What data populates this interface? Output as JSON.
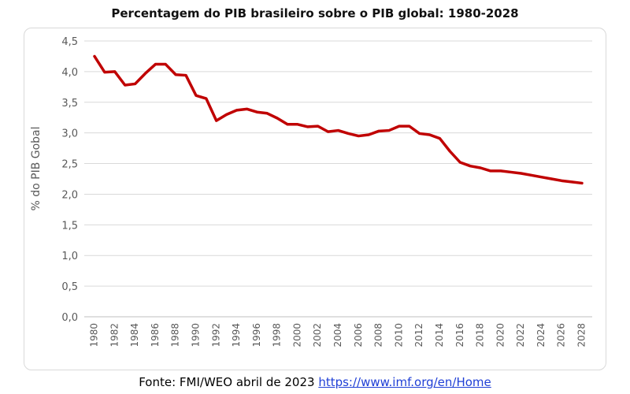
{
  "chart_data": {
    "type": "line",
    "title": "Percentagem do PIB brasileiro sobre o PIB global: 1980-2028",
    "xlabel": "",
    "ylabel": "% do PIB Gobal",
    "ylim": [
      0,
      4.5
    ],
    "y_ticks": [
      "0,0",
      "0,5",
      "1,0",
      "1,5",
      "2,0",
      "2,5",
      "3,0",
      "3,5",
      "4,0",
      "4,5"
    ],
    "x_tick_labels": [
      "1980",
      "1982",
      "1984",
      "1986",
      "1988",
      "1990",
      "1992",
      "1994",
      "1996",
      "1998",
      "2000",
      "2002",
      "2004",
      "2006",
      "2008",
      "2010",
      "2012",
      "2014",
      "2016",
      "2018",
      "2020",
      "2022",
      "2024",
      "2026",
      "2028"
    ],
    "grid": true,
    "line_color": "#c00000",
    "series": [
      {
        "name": "",
        "x": [
          1980,
          1981,
          1982,
          1983,
          1984,
          1985,
          1986,
          1987,
          1988,
          1989,
          1990,
          1991,
          1992,
          1993,
          1994,
          1995,
          1996,
          1997,
          1998,
          1999,
          2000,
          2001,
          2002,
          2003,
          2004,
          2005,
          2006,
          2007,
          2008,
          2009,
          2010,
          2011,
          2012,
          2013,
          2014,
          2015,
          2016,
          2017,
          2018,
          2019,
          2020,
          2021,
          2022,
          2023,
          2024,
          2025,
          2026,
          2027,
          2028
        ],
        "values": [
          4.25,
          3.99,
          4.0,
          3.78,
          3.8,
          3.97,
          4.12,
          4.12,
          3.95,
          3.94,
          3.61,
          3.56,
          3.2,
          3.3,
          3.37,
          3.39,
          3.34,
          3.32,
          3.24,
          3.14,
          3.14,
          3.1,
          3.11,
          3.02,
          3.04,
          2.99,
          2.95,
          2.97,
          3.03,
          3.04,
          3.11,
          3.11,
          2.99,
          2.97,
          2.91,
          2.7,
          2.52,
          2.46,
          2.43,
          2.38,
          2.38,
          2.36,
          2.34,
          2.31,
          2.28,
          2.25,
          2.22,
          2.2,
          2.18
        ]
      }
    ]
  },
  "footer": {
    "source_text": "Fonte: FMI/WEO abril de 2023",
    "link_text": "https://www.imf.org/en/Home"
  }
}
